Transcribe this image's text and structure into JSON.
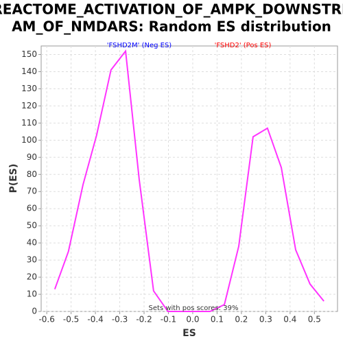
{
  "chart_data": {
    "type": "line",
    "title": [
      "REACTOME_ACTIVATION_OF_AMPK_DOWNSTRE",
      "AM_OF_NMDARS: Random ES distribution"
    ],
    "xlabel": "ES",
    "ylabel": "P(ES)",
    "annotations": [
      {
        "text": "'FSHD2M' (Neg ES)",
        "color": "#0000ff"
      },
      {
        "text": "'FSHD2' (Pos ES)",
        "color": "#ff0000"
      },
      {
        "text": "Sets with pos scores: 39%",
        "color": "#333333"
      }
    ],
    "x": [
      -0.567,
      -0.511,
      -0.451,
      -0.395,
      -0.336,
      -0.276,
      -0.22,
      -0.161,
      -0.102,
      -0.042,
      0.014,
      0.071,
      0.13,
      0.189,
      0.248,
      0.307,
      0.364,
      0.423,
      0.482,
      0.539
    ],
    "values": [
      13,
      35,
      74,
      103,
      141,
      152,
      77,
      12,
      0,
      0,
      0,
      0,
      4,
      38,
      102,
      107,
      84,
      36,
      16,
      6
    ],
    "color": "#ff33ff",
    "xlim": [
      -0.623,
      0.595
    ],
    "xticks": [
      -0.6,
      -0.5,
      -0.4,
      -0.3,
      -0.2,
      -0.1,
      {
        "value": 0,
        "label": "0.0"
      },
      0.1,
      0.2,
      0.3,
      0.4,
      0.5
    ],
    "ylim": [
      0,
      155
    ],
    "yticks": [
      0,
      10,
      20,
      30,
      40,
      50,
      60,
      70,
      80,
      90,
      100,
      110,
      120,
      130,
      140,
      150
    ],
    "grid": true
  }
}
